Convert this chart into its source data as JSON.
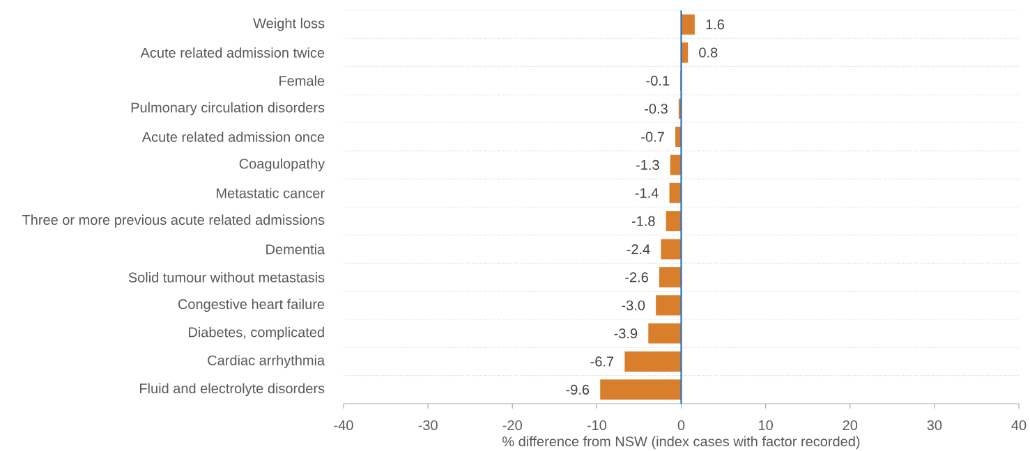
{
  "chart_data": {
    "type": "bar",
    "orientation": "horizontal",
    "categories": [
      "Weight loss",
      "Acute related admission twice",
      "Female",
      "Pulmonary circulation disorders",
      "Acute related admission once",
      "Coagulopathy",
      "Metastatic cancer",
      "Three or more previous acute related admissions",
      "Dementia",
      "Solid tumour without metastasis",
      "Congestive heart failure",
      "Diabetes, complicated",
      "Cardiac arrhythmia",
      "Fluid and electrolyte disorders"
    ],
    "values": [
      1.6,
      0.8,
      -0.1,
      -0.3,
      -0.7,
      -1.3,
      -1.4,
      -1.8,
      -2.4,
      -2.6,
      -3.0,
      -3.9,
      -6.7,
      -9.6
    ],
    "value_labels": [
      "1.6",
      "0.8",
      "-0.1",
      "-0.3",
      "-0.7",
      "-1.3",
      "-1.4",
      "-1.8",
      "-2.4",
      "-2.6",
      "-3.0",
      "-3.9",
      "-6.7",
      "-9.6"
    ],
    "color": "#d97f2b",
    "xlim": [
      -40,
      40
    ],
    "xticks": [
      -40,
      -30,
      -20,
      -10,
      0,
      10,
      20,
      30,
      40
    ],
    "xlabel": "% difference from NSW (index cases with factor recorded)",
    "grid": "y",
    "ref_lines": [
      {
        "axis": "x",
        "value": 0,
        "color": "#2a6ebb"
      }
    ]
  }
}
